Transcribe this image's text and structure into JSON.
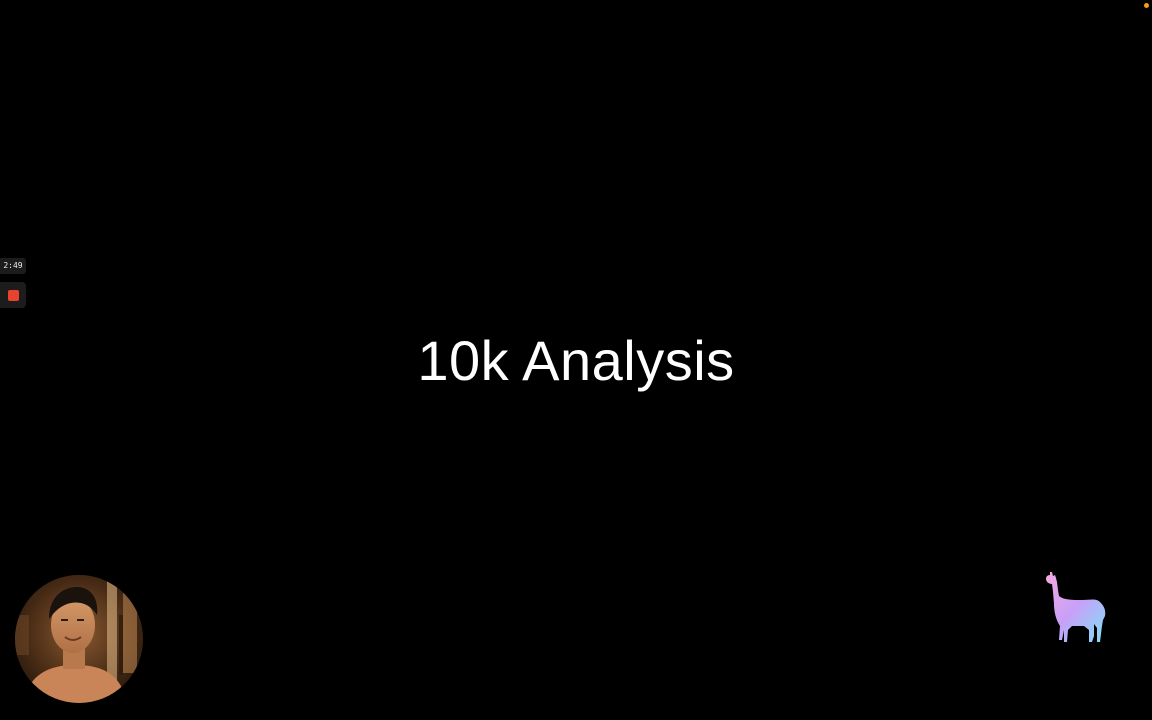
{
  "slide": {
    "title": "10k Analysis"
  },
  "recorder": {
    "timer": "2:49",
    "stop_icon": "stop-square-icon",
    "stop_color": "#e8432f"
  },
  "status": {
    "indicator_color": "#f59e0b"
  },
  "webcam": {
    "icon": "webcam-feed"
  },
  "logo": {
    "icon": "llama-icon",
    "gradient": [
      "#f7a8e0",
      "#c8a0f8",
      "#7ee0f8"
    ]
  }
}
